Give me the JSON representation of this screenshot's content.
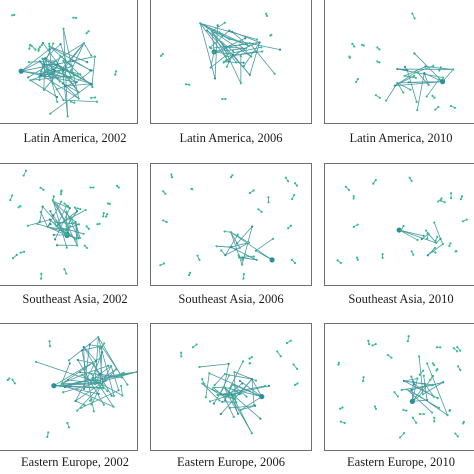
{
  "colors": {
    "edge": "#4a9aa2",
    "node": "#2fbf86",
    "node_dark": "#2a8f9a",
    "border": "#6f6f6f"
  },
  "panels": [
    {
      "region": "Latin America",
      "year": "2002",
      "caption": "Latin America, 2002"
    },
    {
      "region": "Latin America",
      "year": "2006",
      "caption": "Latin America, 2006"
    },
    {
      "region": "Latin America",
      "year": "2010",
      "caption": "Latin America, 2010"
    },
    {
      "region": "Southeast Asia",
      "year": "2002",
      "caption": "Southeast Asia, 2002"
    },
    {
      "region": "Southeast Asia",
      "year": "2006",
      "caption": "Southeast Asia, 2006"
    },
    {
      "region": "Southeast Asia",
      "year": "2010",
      "caption": "Southeast Asia, 2010"
    },
    {
      "region": "Eastern Europe",
      "year": "2002",
      "caption": "Eastern Europe, 2002"
    },
    {
      "region": "Eastern Europe",
      "year": "2006",
      "caption": "Eastern Europe, 2006"
    },
    {
      "region": "Eastern Europe",
      "year": "2010",
      "caption": "Eastern Europe, 2010"
    }
  ]
}
